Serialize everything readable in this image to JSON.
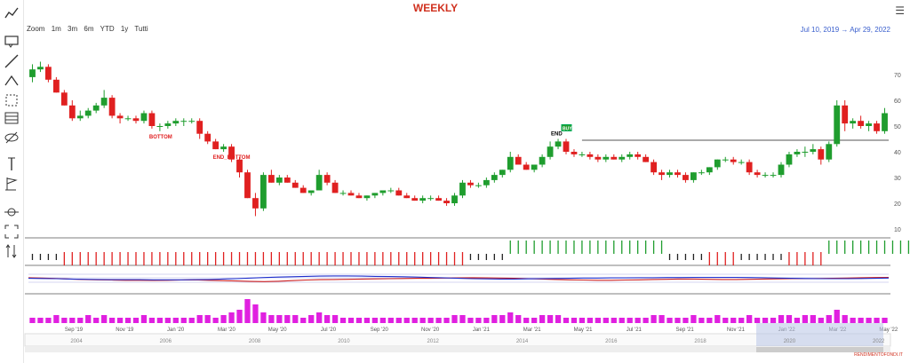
{
  "header": {
    "title": "WEEKLY",
    "menu_icon": "hamburger-icon"
  },
  "zoom": {
    "label": "Zoom",
    "buttons": [
      "1m",
      "3m",
      "6m",
      "YTD",
      "1y",
      "Tutti"
    ]
  },
  "date_range": {
    "from": "Jul 10, 2019",
    "arrow": "→",
    "to": "Apr 29, 2022"
  },
  "sidebar_tools": [
    "trendline-icon",
    "annotation-icon",
    "line-icon",
    "pitchfork-icon",
    "measure-icon",
    "grid-icon",
    "hide-icon",
    "vertical-line-icon",
    "flag-icon",
    "crosshair-icon",
    "fullscreen-icon",
    "reset-zoom-icon"
  ],
  "watermark": "RENDIMENTOFONDI.IT",
  "colors": {
    "up": "#1f9d2e",
    "down": "#e02020",
    "neutral": "#222222",
    "volume": "#e020e0",
    "line_blue": "#1f2fcc",
    "line_red": "#cc2020",
    "title": "#d0311f"
  },
  "chart_data": {
    "type": "candlestick",
    "x_axis_labels": [
      "Sep '19",
      "Nov '19",
      "Jan '20",
      "Mar '20",
      "May '20",
      "Jul '20",
      "Sep '20",
      "Nov '20",
      "Jan '21",
      "Mar '21",
      "May '21",
      "Jul '21",
      "Sep '21",
      "Nov '21",
      "Jan '22",
      "Mar '22",
      "May '22"
    ],
    "y_ticks": [
      10,
      20,
      30,
      40,
      50,
      60,
      70
    ],
    "ylim": [
      10,
      80
    ],
    "navigator_labels": [
      "2004",
      "2006",
      "2008",
      "2010",
      "2012",
      "2014",
      "2016",
      "2018",
      "2020",
      "2022"
    ],
    "annotations": [
      {
        "text": "BOTTOM",
        "week": 16
      },
      {
        "text": "END_BOTTOM",
        "week": 24
      },
      {
        "text": "END",
        "week": 66
      },
      {
        "text": "BUY",
        "week": 67
      }
    ],
    "horizontal_line": {
      "value": 44.5,
      "from_week": 69
    },
    "candles": [
      [
        69,
        74,
        67,
        72
      ],
      [
        72,
        75,
        71,
        73
      ],
      [
        73,
        74,
        67,
        68
      ],
      [
        68,
        69,
        63,
        63
      ],
      [
        63,
        64,
        58,
        58
      ],
      [
        58,
        60,
        52,
        53
      ],
      [
        53,
        56,
        52,
        54
      ],
      [
        54,
        57,
        53,
        56
      ],
      [
        56,
        59,
        55,
        58
      ],
      [
        58,
        64,
        57,
        61
      ],
      [
        61,
        62,
        53,
        54
      ],
      [
        54,
        55,
        51,
        53
      ],
      [
        53,
        54,
        52,
        53
      ],
      [
        53,
        54,
        51,
        52
      ],
      [
        52,
        56,
        51,
        55
      ],
      [
        55,
        56,
        49,
        50
      ],
      [
        50,
        51,
        48,
        50
      ],
      [
        50,
        52,
        49,
        51
      ],
      [
        51,
        53,
        50,
        52
      ],
      [
        52,
        53,
        50,
        52
      ],
      [
        52,
        53,
        51,
        52
      ],
      [
        52,
        53,
        45,
        47
      ],
      [
        47,
        48,
        43,
        44
      ],
      [
        44,
        45,
        41,
        41
      ],
      [
        41,
        43,
        40,
        42
      ],
      [
        42,
        43,
        36,
        37
      ],
      [
        37,
        38,
        30,
        32
      ],
      [
        32,
        33,
        22,
        22
      ],
      [
        22,
        24,
        15,
        18
      ],
      [
        18,
        32,
        17,
        31
      ],
      [
        31,
        33,
        28,
        28
      ],
      [
        28,
        31,
        27,
        30
      ],
      [
        30,
        31,
        28,
        28
      ],
      [
        28,
        29,
        26,
        26
      ],
      [
        26,
        27,
        24,
        24
      ],
      [
        24,
        25,
        23,
        25
      ],
      [
        25,
        33,
        25,
        31
      ],
      [
        31,
        32,
        27,
        28
      ],
      [
        28,
        29,
        24,
        24
      ],
      [
        24,
        25,
        23,
        24
      ],
      [
        24,
        25,
        23,
        23
      ],
      [
        23,
        24,
        22,
        22
      ],
      [
        22,
        23,
        21,
        23
      ],
      [
        23,
        24,
        22,
        24
      ],
      [
        24,
        25,
        23,
        25
      ],
      [
        25,
        26,
        24,
        25
      ],
      [
        25,
        26,
        23,
        23
      ],
      [
        23,
        24,
        22,
        22
      ],
      [
        22,
        23,
        21,
        21
      ],
      [
        21,
        23,
        20,
        22
      ],
      [
        22,
        23,
        21,
        22
      ],
      [
        22,
        23,
        21,
        21
      ],
      [
        21,
        22,
        19,
        20
      ],
      [
        20,
        24,
        19,
        23
      ],
      [
        23,
        29,
        22,
        28
      ],
      [
        28,
        29,
        26,
        27
      ],
      [
        27,
        28,
        26,
        27
      ],
      [
        27,
        30,
        26,
        29
      ],
      [
        29,
        32,
        28,
        31
      ],
      [
        31,
        33,
        30,
        33
      ],
      [
        33,
        40,
        32,
        38
      ],
      [
        38,
        39,
        35,
        35
      ],
      [
        35,
        36,
        33,
        33
      ],
      [
        33,
        35,
        32,
        35
      ],
      [
        35,
        39,
        34,
        38
      ],
      [
        38,
        44,
        37,
        42
      ],
      [
        42,
        45,
        41,
        44
      ],
      [
        44,
        45,
        39,
        40
      ],
      [
        40,
        41,
        38,
        39
      ],
      [
        39,
        40,
        38,
        39
      ],
      [
        39,
        40,
        37,
        38
      ],
      [
        38,
        39,
        36,
        37
      ],
      [
        37,
        39,
        36,
        38
      ],
      [
        38,
        39,
        37,
        37
      ],
      [
        37,
        39,
        36,
        38
      ],
      [
        38,
        40,
        37,
        39
      ],
      [
        39,
        40,
        37,
        38
      ],
      [
        38,
        39,
        36,
        36
      ],
      [
        36,
        37,
        31,
        32
      ],
      [
        32,
        33,
        29,
        31
      ],
      [
        31,
        33,
        30,
        32
      ],
      [
        32,
        33,
        30,
        31
      ],
      [
        31,
        32,
        28,
        29
      ],
      [
        29,
        32,
        28,
        32
      ],
      [
        32,
        33,
        31,
        32
      ],
      [
        32,
        34,
        31,
        34
      ],
      [
        34,
        37,
        33,
        37
      ],
      [
        37,
        38,
        36,
        37
      ],
      [
        37,
        38,
        35,
        36
      ],
      [
        36,
        37,
        35,
        36
      ],
      [
        36,
        37,
        31,
        32
      ],
      [
        32,
        33,
        30,
        31
      ],
      [
        31,
        32,
        30,
        31
      ],
      [
        31,
        32,
        30,
        31
      ],
      [
        31,
        36,
        30,
        35
      ],
      [
        35,
        40,
        34,
        39
      ],
      [
        39,
        41,
        38,
        40
      ],
      [
        40,
        42,
        38,
        40
      ],
      [
        40,
        43,
        39,
        41
      ],
      [
        41,
        42,
        35,
        37
      ],
      [
        37,
        44,
        36,
        43
      ],
      [
        43,
        60,
        42,
        58
      ],
      [
        58,
        60,
        48,
        51
      ],
      [
        51,
        53,
        49,
        52
      ],
      [
        52,
        54,
        49,
        50
      ],
      [
        50,
        52,
        48,
        51
      ],
      [
        51,
        52,
        47,
        48
      ],
      [
        48,
        57,
        47,
        55
      ]
    ],
    "signal_strip": [
      "n",
      "n",
      "n",
      "n",
      "d",
      "d",
      "d",
      "d",
      "d",
      "d",
      "d",
      "d",
      "d",
      "d",
      "d",
      "d",
      "d",
      "d",
      "d",
      "d",
      "d",
      "d",
      "d",
      "d",
      "d",
      "d",
      "d",
      "d",
      "d",
      "d",
      "d",
      "d",
      "d",
      "d",
      "d",
      "d",
      "d",
      "d",
      "d",
      "d",
      "d",
      "d",
      "d",
      "d",
      "d",
      "d",
      "d",
      "d",
      "d",
      "d",
      "d",
      "d",
      "d",
      "d",
      "d",
      "n",
      "n",
      "n",
      "n",
      "n",
      "u",
      "u",
      "u",
      "u",
      "u",
      "u",
      "u",
      "u",
      "u",
      "u",
      "u",
      "u",
      "u",
      "u",
      "u",
      "u",
      "u",
      "u",
      "u",
      "u",
      "n",
      "n",
      "n",
      "n",
      "n",
      "d",
      "d",
      "d",
      "d",
      "n",
      "n",
      "n",
      "n",
      "n",
      "n",
      "d",
      "d",
      "d",
      "d",
      "d",
      "u",
      "u",
      "u",
      "u",
      "u",
      "u",
      "u",
      "u",
      "u",
      "u",
      "u"
    ],
    "oscillator_blue": [
      52,
      51,
      50,
      48,
      47,
      46,
      45,
      45,
      45,
      44,
      44,
      44,
      45,
      46,
      48,
      50,
      53,
      56,
      58,
      60,
      62,
      63,
      64,
      64,
      63,
      62,
      61,
      60,
      58,
      56,
      54,
      52,
      50,
      49,
      48,
      48,
      49,
      50,
      51,
      52,
      53,
      53,
      54,
      54,
      55,
      55,
      56,
      56,
      57,
      57,
      57,
      57,
      56,
      55,
      53,
      52,
      51,
      50,
      50,
      50,
      51,
      52,
      53
    ],
    "oscillator_red": [
      55,
      53,
      51,
      48,
      46,
      44,
      43,
      42,
      42,
      41,
      42,
      43,
      44,
      42,
      40,
      38,
      36,
      35,
      37,
      40,
      43,
      45,
      46,
      47,
      48,
      49,
      50,
      51,
      52,
      52,
      53,
      54,
      55,
      54,
      53,
      52,
      50,
      48,
      46,
      44,
      43,
      42,
      42,
      43,
      44,
      46,
      47,
      48,
      48,
      47,
      46,
      46,
      47,
      48,
      49,
      50,
      50,
      51,
      52,
      53,
      55,
      56,
      57
    ],
    "volume": [
      2,
      2,
      2,
      3,
      2,
      2,
      2,
      3,
      2,
      3,
      2,
      2,
      2,
      2,
      3,
      2,
      2,
      2,
      2,
      2,
      2,
      3,
      3,
      2,
      3,
      4,
      5,
      9,
      7,
      4,
      3,
      3,
      3,
      3,
      2,
      3,
      4,
      3,
      3,
      2,
      2,
      2,
      2,
      2,
      2,
      2,
      2,
      2,
      2,
      2,
      2,
      2,
      2,
      3,
      3,
      2,
      2,
      2,
      3,
      3,
      4,
      3,
      2,
      2,
      3,
      3,
      3,
      2,
      2,
      2,
      2,
      2,
      2,
      2,
      2,
      2,
      2,
      2,
      3,
      3,
      2,
      2,
      2,
      3,
      2,
      2,
      3,
      2,
      2,
      2,
      3,
      2,
      2,
      2,
      3,
      3,
      2,
      3,
      3,
      2,
      3,
      5,
      3,
      2,
      2,
      2,
      2,
      2
    ]
  }
}
